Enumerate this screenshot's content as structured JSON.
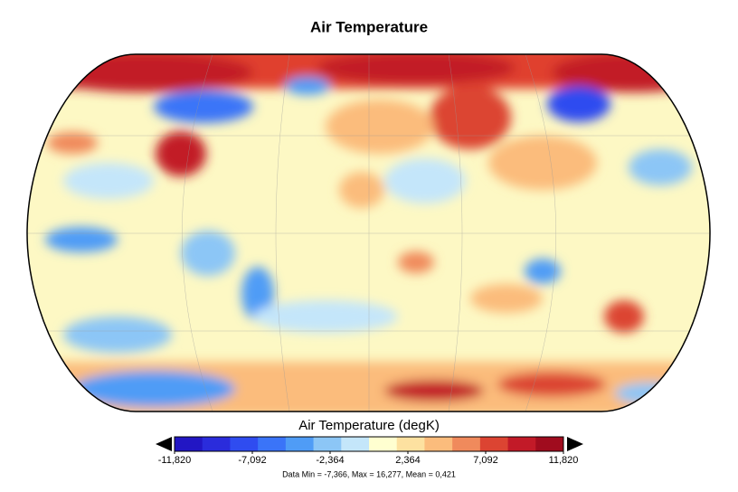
{
  "header": {
    "title": "Air Temperature"
  },
  "colorbar": {
    "label": "Air Temperature (degK)",
    "ticks": [
      "-11,820",
      "-7,092",
      "-2,364",
      "2,364",
      "7,092",
      "11,820"
    ],
    "colors": [
      "#2216c4",
      "#2a2cdc",
      "#2f4cf0",
      "#3a74f8",
      "#4f9cf6",
      "#8cc6f6",
      "#c4e6fa",
      "#ffffd0",
      "#fde1a0",
      "#fbbc7c",
      "#f08a5c",
      "#dc4432",
      "#c21a28",
      "#a00c1e"
    ]
  },
  "footer": "Data Min = -7,366, Max = 16,277, Mean = 0,421"
}
